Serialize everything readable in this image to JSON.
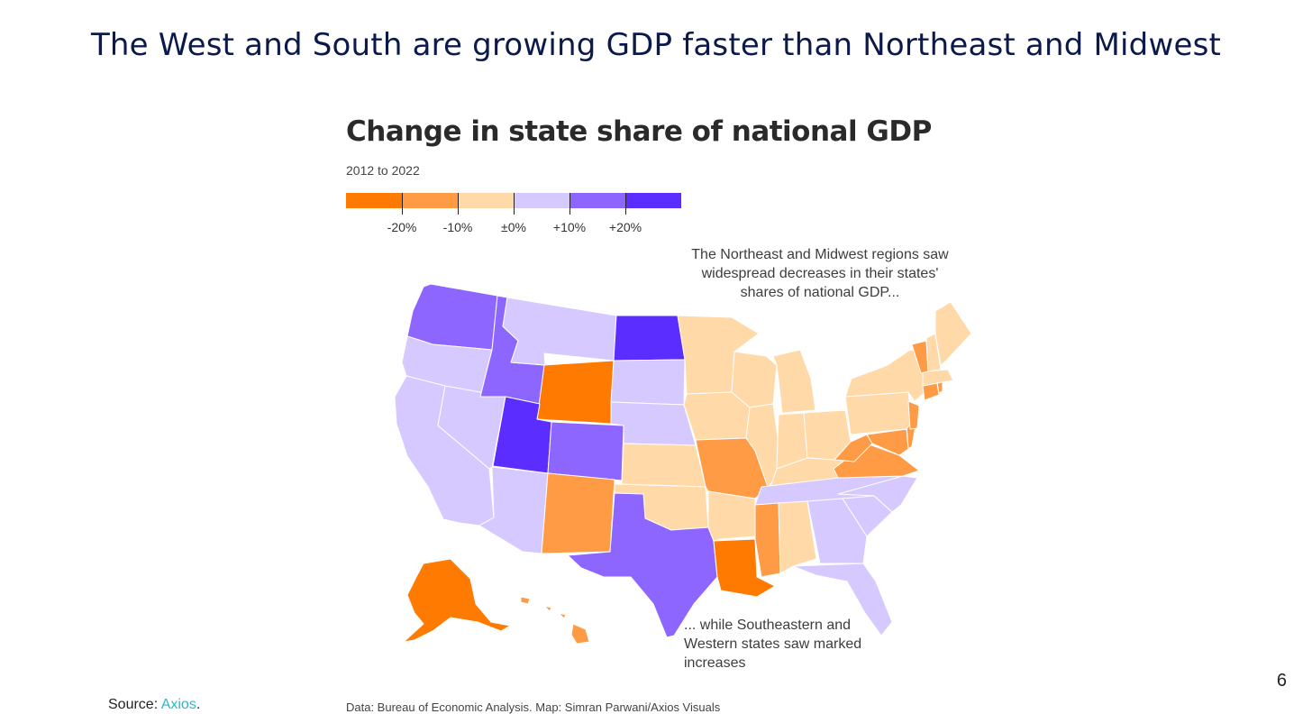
{
  "slide": {
    "title": "The West and South are growing GDP faster than Northeast and Midwest",
    "page_number": "6",
    "source_label": "Source:",
    "source_link": "Axios",
    "source_trailing": "."
  },
  "chart": {
    "title": "Change in state share of national GDP",
    "subtitle": "2012 to 2022",
    "credit": "Data: Bureau of Economic Analysis. Map: Simran Parwani/Axios Visuals",
    "annotation_top": "The Northeast and Midwest regions saw widespread decreases in their states' shares of national GDP...",
    "annotation_bottom": "... while Southeastern and Western states saw marked increases"
  },
  "legend": {
    "colors": [
      "#ff7a00",
      "#ff9a45",
      "#ffd9a8",
      "#d6c9ff",
      "#8d66ff",
      "#5b2dff"
    ],
    "labels": [
      "-20%",
      "-10%",
      "±0%",
      "+10%",
      "+20%"
    ]
  },
  "chart_data": {
    "type": "choropleth",
    "title": "Change in state share of national GDP",
    "subtitle": "2012 to 2022",
    "legend_bins": [
      "-20%",
      "-10%",
      "±0%",
      "+10%",
      "+20%"
    ],
    "states": [
      {
        "state": "WA",
        "bin": 4
      },
      {
        "state": "OR",
        "bin": 3
      },
      {
        "state": "CA",
        "bin": 3
      },
      {
        "state": "NV",
        "bin": 3
      },
      {
        "state": "ID",
        "bin": 4
      },
      {
        "state": "MT",
        "bin": 3
      },
      {
        "state": "WY",
        "bin": 0
      },
      {
        "state": "UT",
        "bin": 5
      },
      {
        "state": "AZ",
        "bin": 3
      },
      {
        "state": "CO",
        "bin": 4
      },
      {
        "state": "NM",
        "bin": 1
      },
      {
        "state": "ND",
        "bin": 5
      },
      {
        "state": "SD",
        "bin": 3
      },
      {
        "state": "NE",
        "bin": 3
      },
      {
        "state": "KS",
        "bin": 2
      },
      {
        "state": "OK",
        "bin": 2
      },
      {
        "state": "TX",
        "bin": 4
      },
      {
        "state": "MN",
        "bin": 2
      },
      {
        "state": "IA",
        "bin": 2
      },
      {
        "state": "MO",
        "bin": 1
      },
      {
        "state": "AR",
        "bin": 2
      },
      {
        "state": "LA",
        "bin": 0
      },
      {
        "state": "WI",
        "bin": 2
      },
      {
        "state": "IL",
        "bin": 2
      },
      {
        "state": "MI",
        "bin": 2
      },
      {
        "state": "IN",
        "bin": 2
      },
      {
        "state": "OH",
        "bin": 2
      },
      {
        "state": "KY",
        "bin": 2
      },
      {
        "state": "TN",
        "bin": 3
      },
      {
        "state": "MS",
        "bin": 1
      },
      {
        "state": "AL",
        "bin": 2
      },
      {
        "state": "GA",
        "bin": 3
      },
      {
        "state": "FL",
        "bin": 3
      },
      {
        "state": "SC",
        "bin": 3
      },
      {
        "state": "NC",
        "bin": 3
      },
      {
        "state": "VA",
        "bin": 1
      },
      {
        "state": "WV",
        "bin": 1
      },
      {
        "state": "MD",
        "bin": 1
      },
      {
        "state": "DE",
        "bin": 1
      },
      {
        "state": "PA",
        "bin": 2
      },
      {
        "state": "NJ",
        "bin": 1
      },
      {
        "state": "NY",
        "bin": 2
      },
      {
        "state": "CT",
        "bin": 1
      },
      {
        "state": "RI",
        "bin": 1
      },
      {
        "state": "MA",
        "bin": 2
      },
      {
        "state": "VT",
        "bin": 1
      },
      {
        "state": "NH",
        "bin": 2
      },
      {
        "state": "ME",
        "bin": 2
      },
      {
        "state": "AK",
        "bin": 0
      },
      {
        "state": "HI",
        "bin": 1
      }
    ]
  }
}
